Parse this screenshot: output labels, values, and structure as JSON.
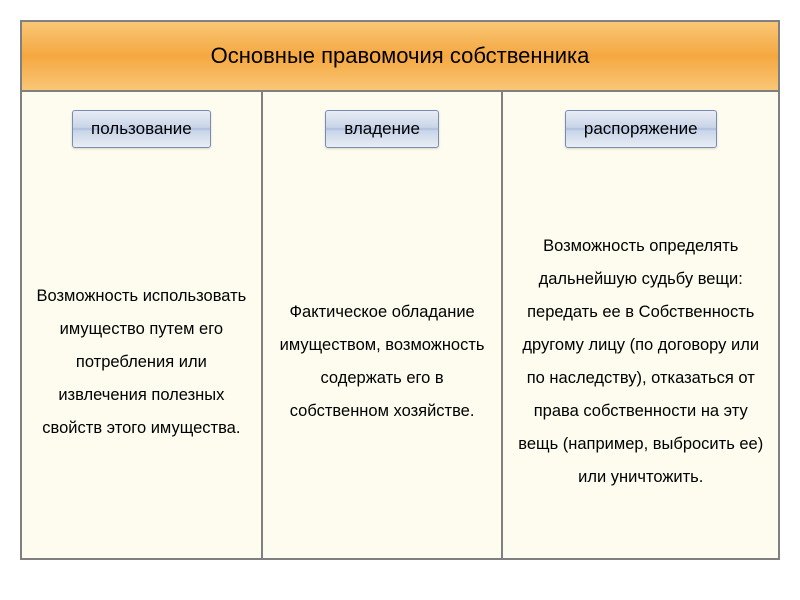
{
  "title": "Основные правомочия собственника",
  "columns": [
    {
      "header": "пользование",
      "body": "Возможность использовать имущество путем его потребления или извлечения полезных свойств этого имущества."
    },
    {
      "header": "владение",
      "body": "Фактическое обладание имуществом, возможность содержать его в собственном хозяйстве."
    },
    {
      "header": "распоряжение",
      "body": "Возможность определять дальнейшую судьбу вещи: передать ее в Собственность другому лицу (по договору или по наследству), отказаться от права собственности на эту вещь (например, выбросить ее) или уничтожить."
    }
  ],
  "colors": {
    "frame_border": "#808080",
    "background": "#fdfcee",
    "title_gradient_light": "#f9c676",
    "title_gradient_dark": "#f5a840",
    "button_border": "#7a8db0",
    "text": "#000000"
  }
}
